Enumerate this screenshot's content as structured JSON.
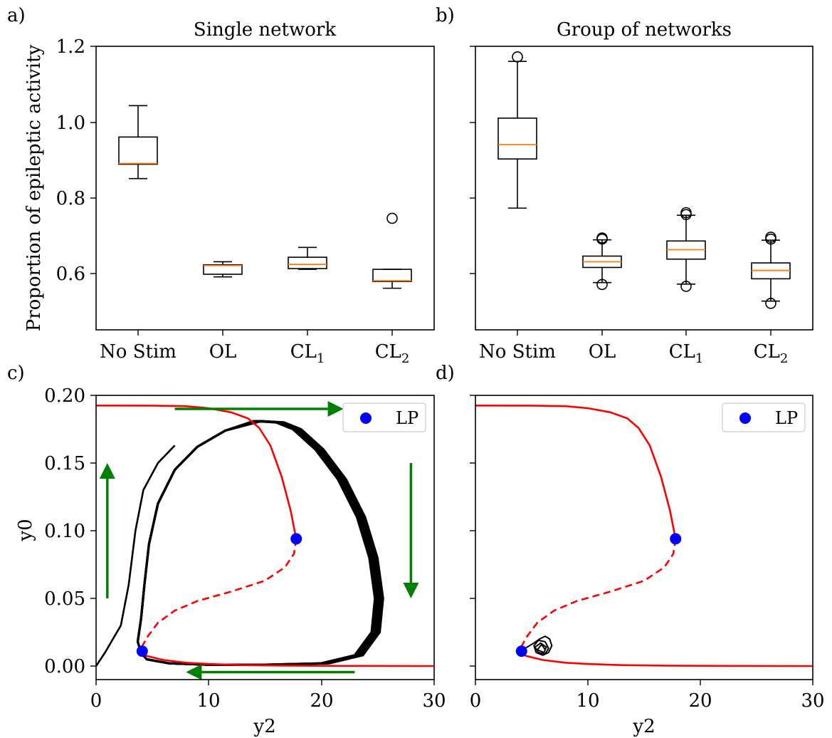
{
  "panel_labels": [
    "a)",
    "b)",
    "c)",
    "d)"
  ],
  "colors": {
    "box": "#000000",
    "median": "#ff7f0e",
    "branch": "#ff0000",
    "orbit": "#000000",
    "lp": "#0000ff",
    "arrow": "#008000"
  },
  "chart_data": [
    {
      "type": "box",
      "panel": "a)",
      "title": "Single network",
      "ylabel": "Proportion of epileptic activity",
      "categories": [
        {
          "main": "No Stim",
          "sub": ""
        },
        {
          "main": "OL",
          "sub": ""
        },
        {
          "main": "CL",
          "sub": "1"
        },
        {
          "main": "CL",
          "sub": "2"
        }
      ],
      "ylim": [
        0.45,
        1.2
      ],
      "yticks": [
        "0.6",
        "0.8",
        "1.0",
        "1.2"
      ],
      "boxes": [
        {
          "whislo": 0.85,
          "q1": 0.888,
          "med": 0.89,
          "q3": 0.96,
          "whishi": 1.043,
          "fliers": []
        },
        {
          "whislo": 0.59,
          "q1": 0.597,
          "med": 0.62,
          "q3": 0.622,
          "whishi": 0.63,
          "fliers": []
        },
        {
          "whislo": 0.61,
          "q1": 0.612,
          "med": 0.623,
          "q3": 0.642,
          "whishi": 0.668,
          "fliers": []
        },
        {
          "whislo": 0.56,
          "q1": 0.578,
          "med": 0.58,
          "q3": 0.61,
          "whishi": 0.61,
          "fliers": [
            0.745
          ]
        }
      ]
    },
    {
      "type": "box",
      "panel": "b)",
      "title": "Group of networks",
      "categories": [
        {
          "main": "No Stim",
          "sub": ""
        },
        {
          "main": "OL",
          "sub": ""
        },
        {
          "main": "CL",
          "sub": "1"
        },
        {
          "main": "CL",
          "sub": "2"
        }
      ],
      "ylim": [
        0.45,
        1.2
      ],
      "boxes": [
        {
          "whislo": 0.772,
          "q1": 0.902,
          "med": 0.94,
          "q3": 1.01,
          "whishi": 1.16,
          "fliers": [
            1.172
          ]
        },
        {
          "whislo": 0.575,
          "q1": 0.615,
          "med": 0.63,
          "q3": 0.645,
          "whishi": 0.688,
          "fliers": [
            0.57,
            0.69,
            0.693
          ]
        },
        {
          "whislo": 0.571,
          "q1": 0.637,
          "med": 0.662,
          "q3": 0.685,
          "whishi": 0.753,
          "fliers": [
            0.565,
            0.755,
            0.76
          ]
        },
        {
          "whislo": 0.526,
          "q1": 0.585,
          "med": 0.607,
          "q3": 0.627,
          "whishi": 0.687,
          "fliers": [
            0.52,
            0.69,
            0.695
          ]
        }
      ]
    },
    {
      "type": "line",
      "panel": "c)",
      "xlabel": "y2",
      "ylabel": "y0",
      "xlim": [
        0,
        30
      ],
      "ylim": [
        -0.01,
        0.2
      ],
      "xticks": [
        "0",
        "10",
        "20",
        "30"
      ],
      "yticks": [
        "0.00",
        "0.05",
        "0.10",
        "0.15",
        "0.20"
      ],
      "legend": {
        "label": "LP",
        "location": "top-right"
      },
      "bifurcation_stable_upper": [
        [
          0,
          0.1925
        ],
        [
          5,
          0.1924
        ],
        [
          8,
          0.192
        ],
        [
          10,
          0.1905
        ],
        [
          12,
          0.1875
        ],
        [
          13.5,
          0.183
        ],
        [
          14.5,
          0.176
        ],
        [
          15.5,
          0.163
        ],
        [
          16.5,
          0.14
        ],
        [
          17.3,
          0.115
        ],
        [
          17.8,
          0.094
        ]
      ],
      "bifurcation_unstable": [
        [
          17.8,
          0.094
        ],
        [
          17.6,
          0.083
        ],
        [
          16.8,
          0.073
        ],
        [
          15,
          0.063
        ],
        [
          12,
          0.055
        ],
        [
          9,
          0.048
        ],
        [
          7,
          0.041
        ],
        [
          5.5,
          0.032
        ],
        [
          4.6,
          0.022
        ],
        [
          4.05,
          0.014
        ],
        [
          3.9,
          0.011
        ]
      ],
      "bifurcation_stable_lower": [
        [
          3.9,
          0.011
        ],
        [
          4.5,
          0.0075
        ],
        [
          6,
          0.0045
        ],
        [
          8,
          0.0025
        ],
        [
          10,
          0.0015
        ],
        [
          13,
          0.0007
        ],
        [
          17,
          0.0003
        ],
        [
          22,
          0.0001
        ],
        [
          30,
          0
        ]
      ],
      "limit_points": [
        [
          17.8,
          0.094
        ],
        [
          4.1,
          0.011
        ]
      ],
      "trajectory_transient": [
        [
          0,
          0
        ],
        [
          0.8,
          0.01
        ],
        [
          1.5,
          0.02
        ],
        [
          2.2,
          0.03
        ],
        [
          2.9,
          0.06
        ],
        [
          3.5,
          0.1
        ],
        [
          4.2,
          0.13
        ],
        [
          5.5,
          0.15
        ],
        [
          7,
          0.163
        ]
      ],
      "limit_cycle": [
        [
          4.0,
          0.01
        ],
        [
          3.7,
          0.018
        ],
        [
          4.0,
          0.035
        ],
        [
          4.3,
          0.06
        ],
        [
          4.7,
          0.09
        ],
        [
          5.5,
          0.12
        ],
        [
          7,
          0.145
        ],
        [
          9,
          0.162
        ],
        [
          11.5,
          0.174
        ],
        [
          14,
          0.181
        ],
        [
          16,
          0.18
        ],
        [
          17.5,
          0.175
        ],
        [
          19.5,
          0.16
        ],
        [
          21.5,
          0.138
        ],
        [
          23.2,
          0.11
        ],
        [
          24.3,
          0.08
        ],
        [
          24.8,
          0.05
        ],
        [
          24.5,
          0.025
        ],
        [
          23,
          0.008
        ],
        [
          20,
          0.002
        ],
        [
          15,
          0.001
        ],
        [
          10,
          0.001
        ],
        [
          6.5,
          0.002
        ],
        [
          4.5,
          0.005
        ],
        [
          4.0,
          0.01
        ]
      ],
      "arrows": [
        {
          "from": [
            7,
            0.19
          ],
          "to": [
            22,
            0.19
          ]
        },
        {
          "from": [
            28,
            0.15
          ],
          "to": [
            28,
            0.05
          ]
        },
        {
          "from": [
            23,
            -0.0045
          ],
          "to": [
            8,
            -0.0045
          ]
        },
        {
          "from": [
            1,
            0.05
          ],
          "to": [
            1,
            0.15
          ]
        }
      ]
    },
    {
      "type": "line",
      "panel": "d)",
      "xlabel": "y2",
      "xlim": [
        0,
        30
      ],
      "ylim": [
        -0.01,
        0.2
      ],
      "xticks": [
        "0",
        "10",
        "20",
        "30"
      ],
      "legend": {
        "label": "LP",
        "location": "top-right"
      },
      "bifurcation_stable_upper": [
        [
          0,
          0.1925
        ],
        [
          5,
          0.1924
        ],
        [
          8,
          0.192
        ],
        [
          10,
          0.1905
        ],
        [
          12,
          0.1875
        ],
        [
          13.5,
          0.183
        ],
        [
          14.5,
          0.176
        ],
        [
          15.5,
          0.163
        ],
        [
          16.5,
          0.14
        ],
        [
          17.3,
          0.115
        ],
        [
          17.8,
          0.094
        ]
      ],
      "bifurcation_unstable": [
        [
          17.8,
          0.094
        ],
        [
          17.6,
          0.083
        ],
        [
          16.8,
          0.073
        ],
        [
          15,
          0.063
        ],
        [
          12,
          0.055
        ],
        [
          9,
          0.048
        ],
        [
          7,
          0.041
        ],
        [
          5.5,
          0.032
        ],
        [
          4.6,
          0.022
        ],
        [
          4.05,
          0.014
        ],
        [
          3.9,
          0.011
        ]
      ],
      "bifurcation_stable_lower": [
        [
          3.9,
          0.011
        ],
        [
          4.5,
          0.0075
        ],
        [
          6,
          0.0045
        ],
        [
          8,
          0.0025
        ],
        [
          10,
          0.0015
        ],
        [
          13,
          0.0007
        ],
        [
          17,
          0.0003
        ],
        [
          22,
          0.0001
        ],
        [
          30,
          0
        ]
      ],
      "limit_points": [
        [
          17.8,
          0.094
        ],
        [
          4.1,
          0.011
        ]
      ],
      "trajectory": [
        [
          4.0,
          0.011
        ],
        [
          4.6,
          0.014
        ],
        [
          5.2,
          0.017
        ],
        [
          5.7,
          0.02
        ],
        [
          6.2,
          0.022
        ],
        [
          6.6,
          0.02
        ],
        [
          6.8,
          0.015
        ],
        [
          6.5,
          0.01
        ],
        [
          6.0,
          0.008
        ],
        [
          5.4,
          0.01
        ],
        [
          5.2,
          0.015
        ],
        [
          5.6,
          0.019
        ],
        [
          6.2,
          0.018
        ],
        [
          6.5,
          0.013
        ],
        [
          6.2,
          0.009
        ],
        [
          5.6,
          0.01
        ],
        [
          5.3,
          0.014
        ],
        [
          5.8,
          0.017
        ],
        [
          6.3,
          0.014
        ],
        [
          6.1,
          0.01
        ],
        [
          5.5,
          0.012
        ],
        [
          5.9,
          0.016
        ],
        [
          6.2,
          0.012
        ]
      ]
    }
  ]
}
